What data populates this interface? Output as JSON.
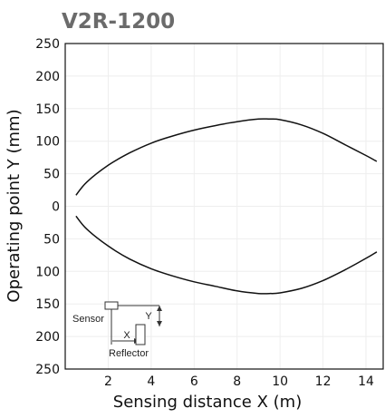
{
  "chart_data": {
    "type": "line",
    "title": "V2R-1200",
    "xlabel": "Sensing distance X (m)",
    "ylabel": "Operating point Y (mm)",
    "xlim": [
      0,
      14.8
    ],
    "ylim": [
      -250,
      250
    ],
    "x_ticks": [
      2,
      4,
      6,
      8,
      10,
      12,
      14
    ],
    "y_tick_values": [
      250,
      200,
      150,
      100,
      50,
      0,
      -50,
      -100,
      -150,
      -200,
      -250
    ],
    "y_tick_labels": [
      "250",
      "200",
      "150",
      "100",
      "50",
      "0",
      "50",
      "100",
      "150",
      "200",
      "250"
    ],
    "grid": false,
    "series": [
      {
        "x": [
          0.5,
          1.0,
          2.0,
          3.0,
          4.0,
          5.0,
          6.0,
          7.0,
          8.0,
          9.0,
          9.5,
          10.0,
          11.0,
          12.0,
          13.0,
          14.0,
          14.5
        ],
        "values": [
          17,
          37,
          63,
          82,
          97,
          108,
          117,
          124,
          130,
          134,
          134,
          133,
          125,
          112,
          95,
          78,
          69
        ]
      },
      {
        "x": [
          0.5,
          1.0,
          2.0,
          3.0,
          4.0,
          5.0,
          6.0,
          7.0,
          8.0,
          9.0,
          9.5,
          10.0,
          11.0,
          12.0,
          13.0,
          14.0,
          14.5
        ],
        "values": [
          -15,
          -35,
          -61,
          -81,
          -96,
          -107,
          -116,
          -123,
          -130,
          -134,
          -134,
          -133,
          -126,
          -114,
          -98,
          -80,
          -70
        ]
      }
    ],
    "inset": {
      "labels": [
        "Sensor",
        "X",
        "Y",
        "Reflector"
      ]
    }
  }
}
